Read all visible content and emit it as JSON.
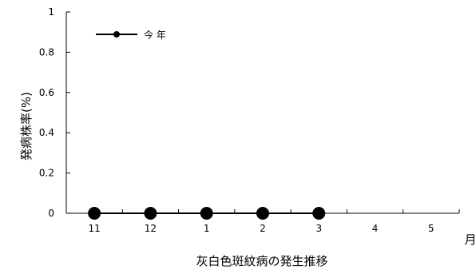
{
  "chart_data": {
    "type": "line",
    "title": "",
    "xlabel": "灰白色斑紋病の発生推移",
    "ylabel": "発病株率(%)",
    "x_unit_label": "月",
    "categories": [
      "11",
      "12",
      "1",
      "2",
      "3",
      "4",
      "5"
    ],
    "ylim": [
      0,
      1
    ],
    "yticks": [
      "0",
      "0.2",
      "0.4",
      "0.6",
      "0.8",
      "1"
    ],
    "grid": false,
    "legend_position": "top-left",
    "series": [
      {
        "name": "今 年",
        "color": "#000000",
        "marker": "circle",
        "values": [
          0,
          0,
          0,
          0,
          0,
          null,
          null
        ]
      }
    ]
  }
}
